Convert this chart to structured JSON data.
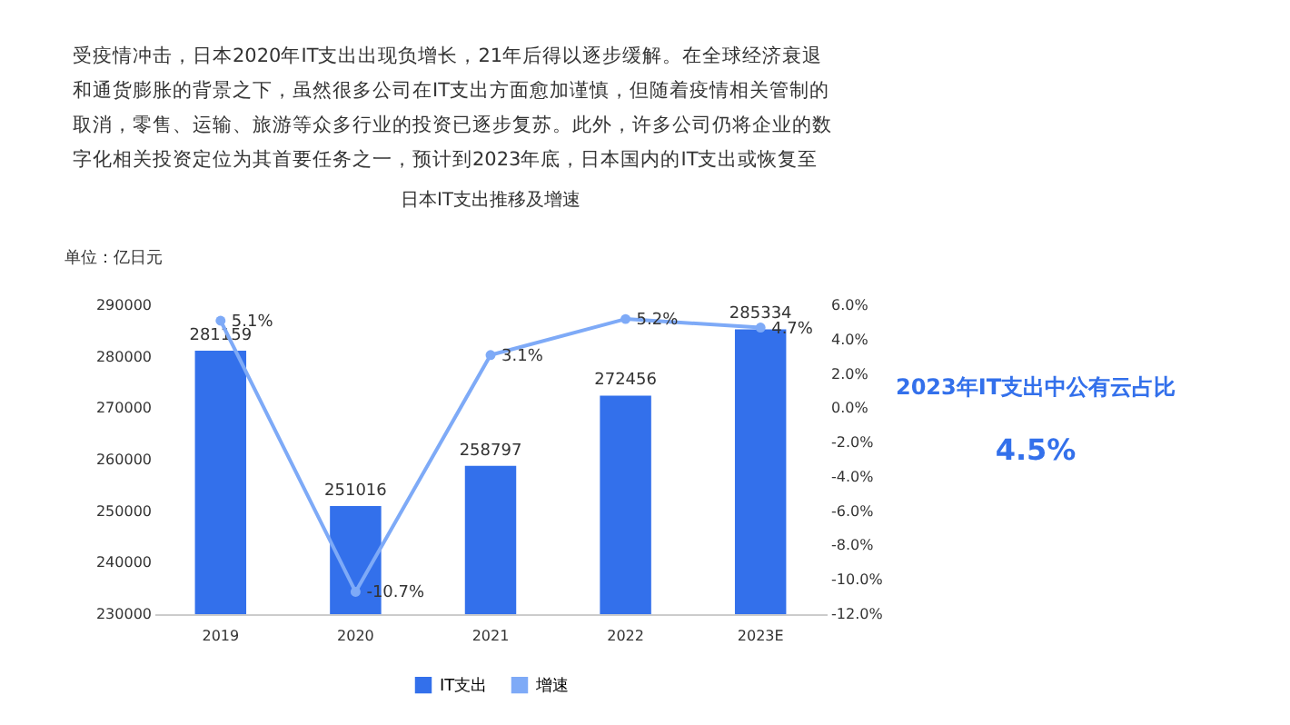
{
  "chart_data": [
    {
      "type": "bar",
      "title": "日本IT支出推移及增速",
      "ylabel": "单位：亿日元",
      "annotations": [
        "受疫情冲击，日本2020年IT支出出现负增长，21年后得以逐步缓解。在全球经济衰退和通货膨胀的背景之下，虽然很多公司在IT支出方面愈加谨慎，但随着疫情相关管制的取消，零售、运输、旅游等众多行业的投资已逐步复苏。此外，许多公司仍将企业的数字化相关投资定位为其首要任务之一，预计到2023年底，日本国内的IT支出或恢复至疫情前水平，在公有云方面的支出或占到4.5%。"
      ],
      "categories": [
        "2019",
        "2020",
        "2021",
        "2022",
        "2023E"
      ],
      "series": [
        {
          "name": "IT支出",
          "type": "bar",
          "color": "#3370eb",
          "values": [
            281159,
            251016,
            258797,
            272456,
            285334
          ],
          "value_labels": [
            "281159",
            "251016",
            "258797",
            "272456",
            "285334"
          ]
        },
        {
          "name": "增速",
          "type": "line",
          "axis": "y2",
          "color": "#7eaaf7",
          "values": [
            5.1,
            -10.7,
            3.1,
            5.2,
            4.7
          ],
          "value_labels": [
            "5.1%",
            "-10.7%",
            "3.1%",
            "5.2%",
            "4.7%"
          ]
        }
      ],
      "ylim": [
        230000,
        290000
      ],
      "yticks": [
        230000,
        240000,
        250000,
        260000,
        270000,
        280000,
        290000
      ],
      "y2lim": [
        -12,
        6
      ],
      "y2ticks": [
        {
          "value": -12,
          "label": "-12.0%"
        },
        {
          "value": -10,
          "label": "-10.0%"
        },
        {
          "value": -8,
          "label": "-8.0%"
        },
        {
          "value": -6,
          "label": "-6.0%"
        },
        {
          "value": -4,
          "label": "-4.0%"
        },
        {
          "value": -2,
          "label": "-2.0%"
        },
        {
          "value": 0,
          "label": "0.0%"
        },
        {
          "value": 2,
          "label": "2.0%"
        },
        {
          "value": 4,
          "label": "4.0%"
        },
        {
          "value": 6,
          "label": "6.0%"
        }
      ],
      "legend": "bottom",
      "marker": "circle",
      "grid": false
    },
    {
      "type": "other",
      "annotations": [
        "2023年IT支出中公有云占比",
        "4.5%"
      ]
    }
  ]
}
